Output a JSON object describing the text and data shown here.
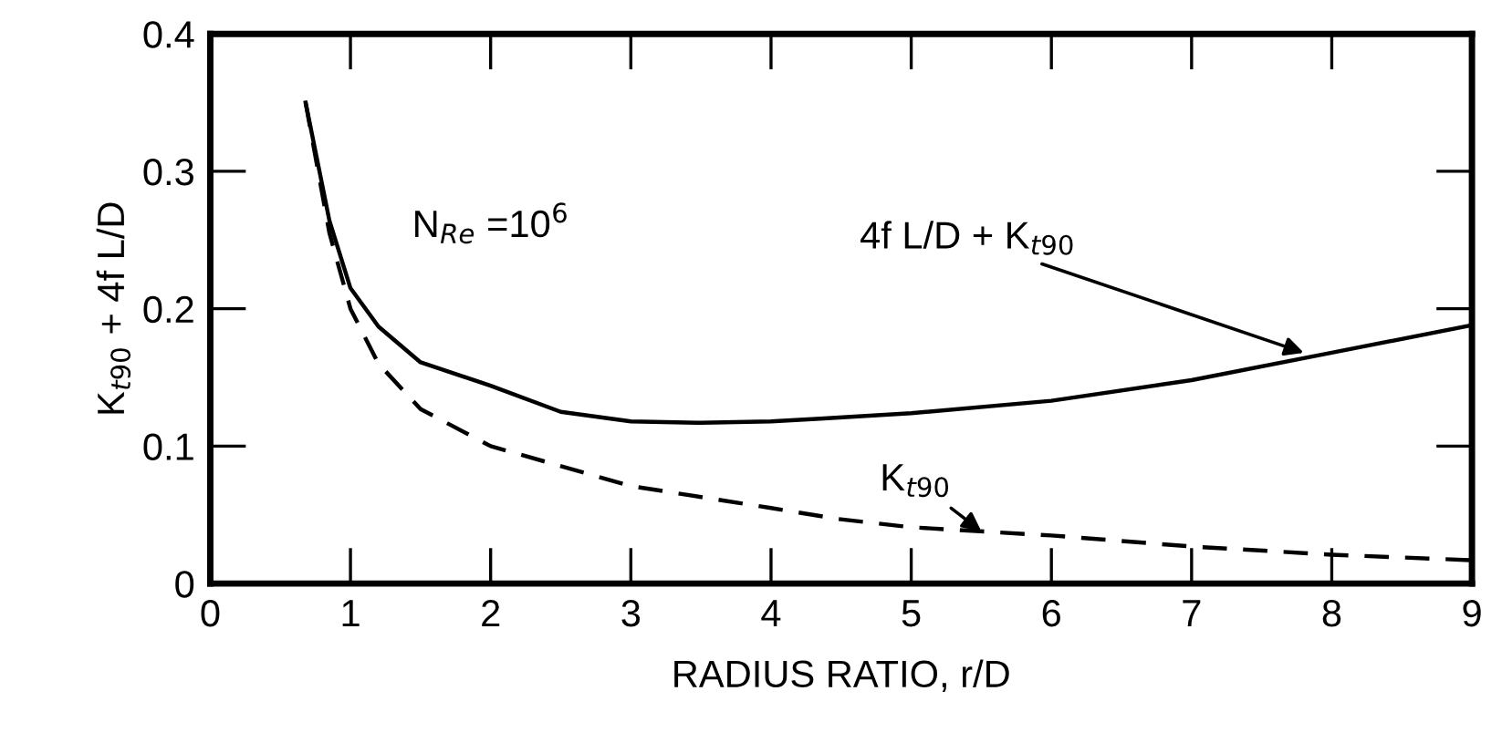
{
  "chart_data": {
    "type": "line",
    "xlabel": "RADIUS RATIO, r/D",
    "ylabel": "K$_{t90}$ + 4f L/D",
    "xlim": [
      0,
      9
    ],
    "ylim": [
      0,
      0.4
    ],
    "xticks": [
      0,
      1,
      2,
      3,
      4,
      5,
      6,
      7,
      8,
      9
    ],
    "yticks": [
      0,
      0.1,
      0.2,
      0.3,
      0.4
    ],
    "grid": false,
    "legend": false,
    "marker": "none",
    "series": [
      {
        "color": "#000000",
        "line_style": "solid",
        "x": [
          0.68,
          0.85,
          1,
          1.2,
          1.5,
          2,
          2.5,
          3,
          3.5,
          4,
          4.35,
          5,
          6,
          7,
          8,
          9
        ],
        "values": [
          0.35,
          0.264,
          0.215,
          0.187,
          0.161,
          0.144,
          0.125,
          0.118,
          0.117,
          0.118,
          0.12,
          0.124,
          0.133,
          0.148,
          0.168,
          0.188
        ]
      },
      {
        "color": "#000000",
        "line_style": "dashed",
        "x": [
          0.68,
          0.85,
          1,
          1.2,
          1.5,
          2,
          3,
          4,
          4.48,
          5,
          6,
          7,
          8,
          9
        ],
        "values": [
          0.35,
          0.255,
          0.2,
          0.16,
          0.127,
          0.1,
          0.071,
          0.055,
          0.047,
          0.041,
          0.035,
          0.027,
          0.021,
          0.017
        ]
      }
    ],
    "annotations": [
      "N$_{Re}$ =10$^{6}$",
      {
        "text": "4f L/D + K$_{t90}$",
        "x": 7.8,
        "y": 0.168
      },
      {
        "text": "K$_{t90}$",
        "x": 5.5,
        "y": 0.038
      }
    ]
  }
}
